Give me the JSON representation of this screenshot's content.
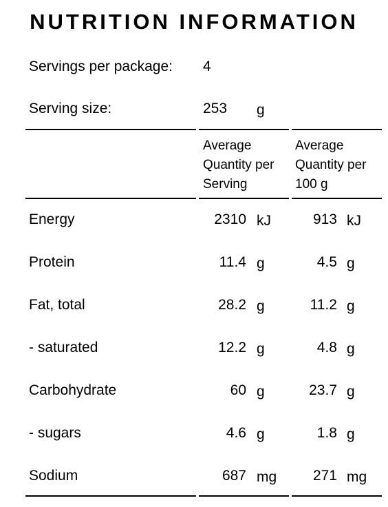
{
  "title": "NUTRITION INFORMATION",
  "servings_per_package": {
    "label": "Servings per package:",
    "value": "4"
  },
  "serving_size": {
    "label": "Serving size:",
    "value": "253",
    "unit": "g"
  },
  "column_headers": [
    [
      "Average",
      "Quantity per",
      "Serving"
    ],
    [
      "Average",
      "Quantity per",
      "100 g"
    ]
  ],
  "rows": [
    [
      "Energy",
      "2310",
      "kJ",
      "913",
      "kJ"
    ],
    [
      "Protein",
      "11.4",
      "g",
      "4.5",
      "g"
    ],
    [
      "Fat, total",
      "28.2",
      "g",
      "11.2",
      "g"
    ],
    [
      "- saturated",
      "12.2",
      "g",
      "4.8",
      "g"
    ],
    [
      "Carbohydrate",
      "60",
      "g",
      "23.7",
      "g"
    ],
    [
      "- sugars",
      "4.6",
      "g",
      "1.8",
      "g"
    ],
    [
      "Sodium",
      "687",
      "mg",
      "271",
      "mg"
    ]
  ]
}
